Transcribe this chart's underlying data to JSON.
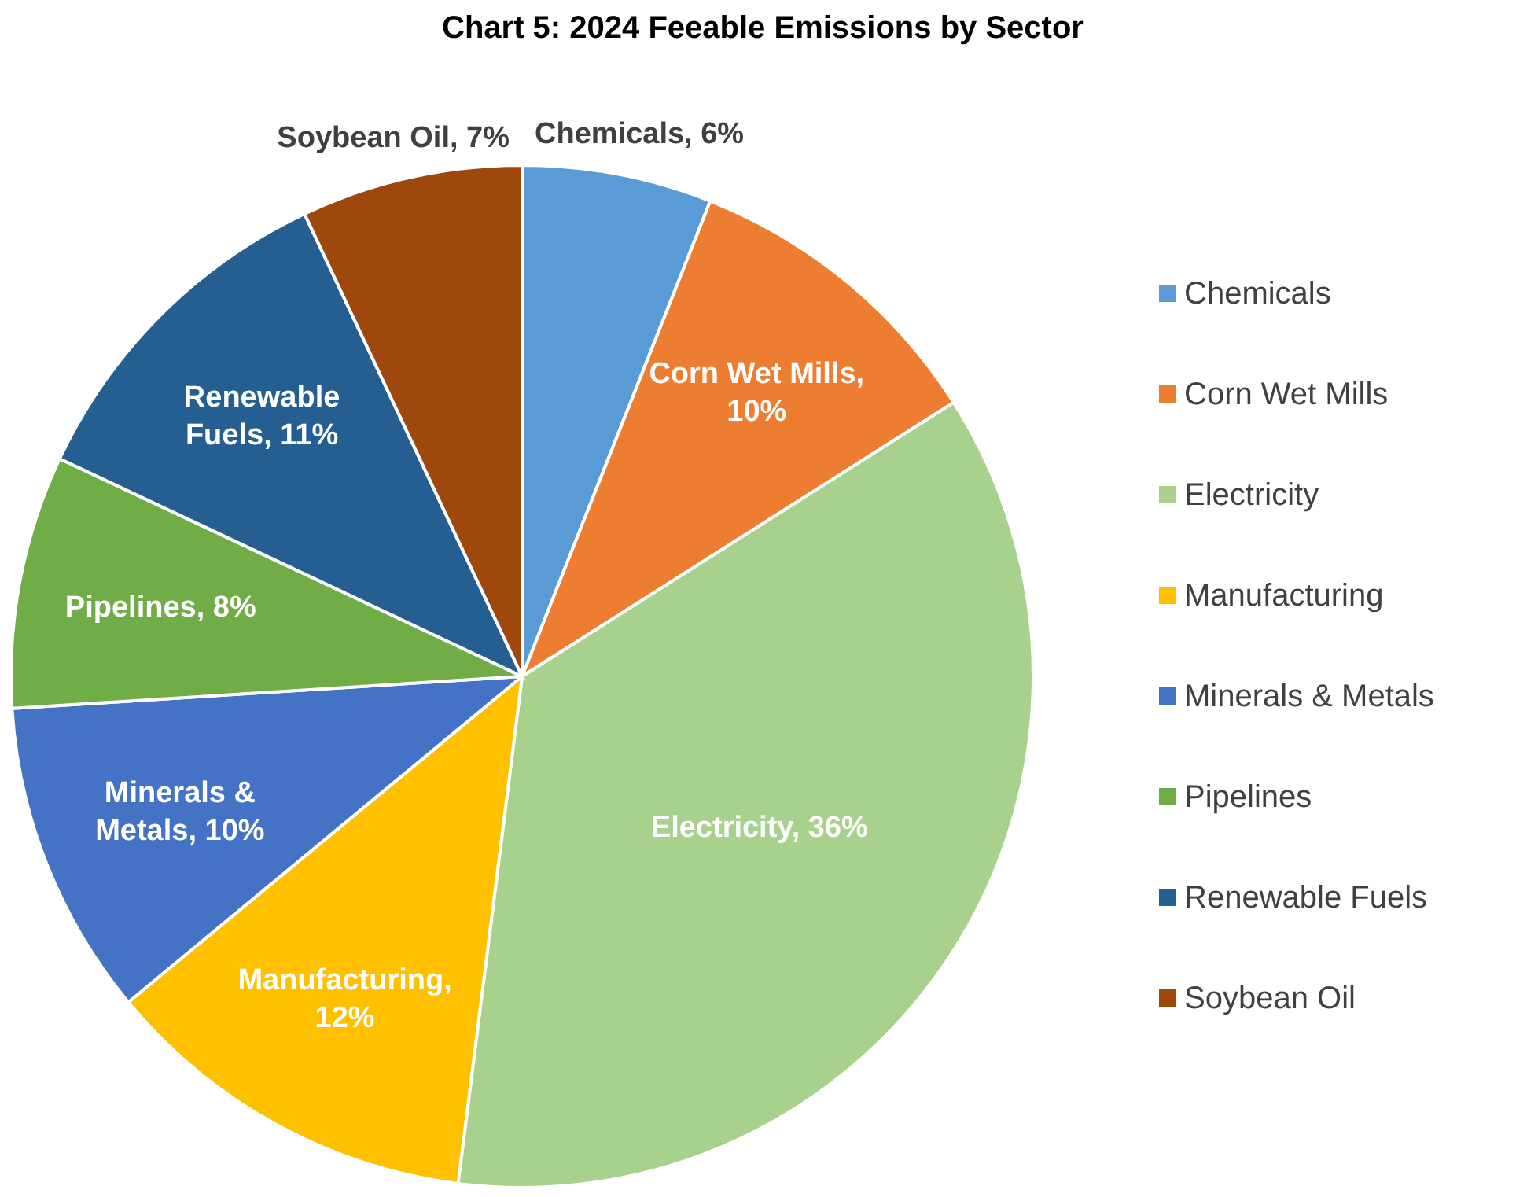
{
  "chart_data": {
    "type": "pie",
    "title": "Chart 5: 2024 Feeable Emissions by Sector",
    "categories": [
      "Chemicals",
      "Corn Wet Mills",
      "Electricity",
      "Manufacturing",
      "Minerals & Metals",
      "Pipelines",
      "Renewable Fuels",
      "Soybean Oil"
    ],
    "values": [
      6,
      10,
      36,
      12,
      10,
      8,
      11,
      7
    ],
    "colors": [
      "#5b9bd5",
      "#ed7d31",
      "#a9d18e",
      "#ffc000",
      "#4472c4",
      "#70ad47",
      "#255e91",
      "#9e480e"
    ],
    "value_labels": [
      "Chemicals, 6%",
      "Corn Wet Mills,\n10%",
      "Electricity, 36%",
      "Manufacturing,\n12%",
      "Minerals &\nMetals, 10%",
      "Pipelines, 8%",
      "Renewable\nFuels, 11%",
      "Soybean Oil, 7%"
    ],
    "legend": "right"
  }
}
